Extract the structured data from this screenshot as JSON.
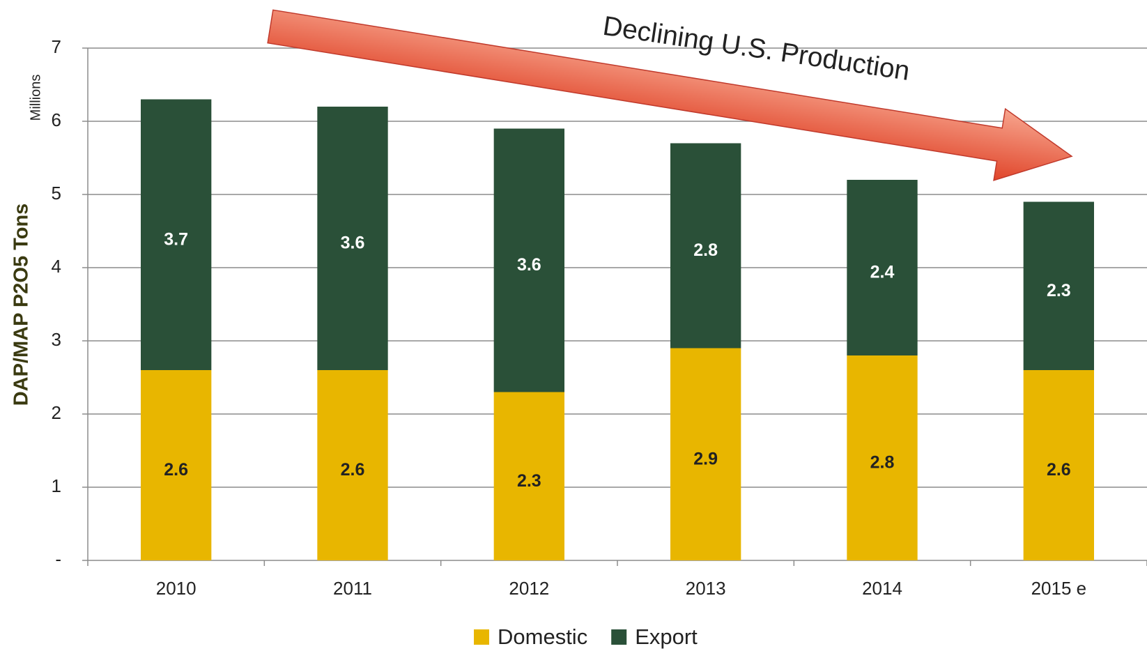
{
  "chart_data": {
    "type": "stacked_bar",
    "y_label": "DAP/MAP P2O5  Tons",
    "y_unit": "Millions",
    "annotation": "Declining U.S. Production",
    "categories": [
      "2010",
      "2011",
      "2012",
      "2013",
      "2014",
      "2015 e"
    ],
    "series": [
      {
        "name": "Domestic",
        "color": "#e8b600",
        "values": [
          2.6,
          2.6,
          2.3,
          2.9,
          2.8,
          2.6
        ]
      },
      {
        "name": "Export",
        "color": "#2a5038",
        "values": [
          3.7,
          3.6,
          3.6,
          2.8,
          2.4,
          2.3
        ]
      }
    ],
    "ylim": [
      0,
      7
    ],
    "yticks": [
      {
        "value": 0,
        "label": "-"
      },
      1,
      2,
      3,
      4,
      5,
      6,
      7
    ],
    "grid": true,
    "legend": "bottom"
  }
}
